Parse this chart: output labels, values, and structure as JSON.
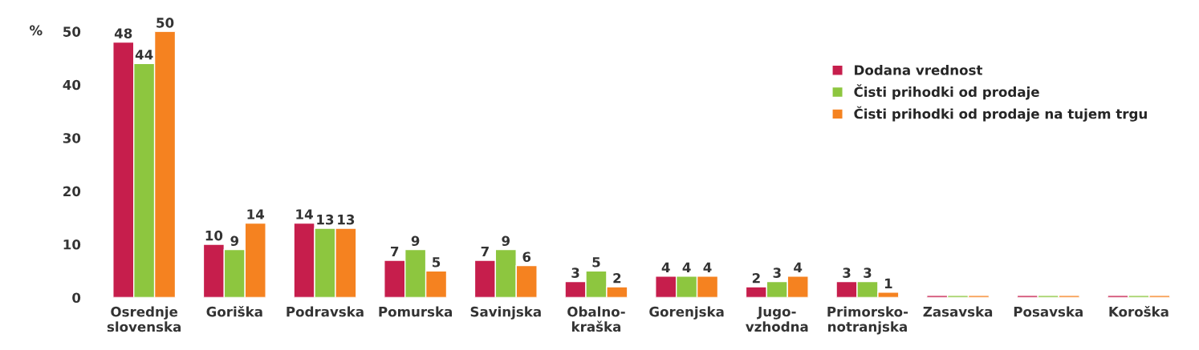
{
  "chart_data": {
    "type": "bar",
    "ylabel": "%",
    "categories": [
      "Osrednje\nslovenska",
      "Goriška",
      "Podravska",
      "Pomurska",
      "Savinjska",
      "Obalno-\nkraška",
      "Gorenjska",
      "Jugo-\nvzhodna",
      "Primorsko-\nnotranjska",
      "Zasavska",
      "Posavska",
      "Koroška"
    ],
    "series": [
      {
        "name": "Dodana vrednost",
        "color": "#c61e4c",
        "values": [
          48,
          10,
          14,
          7,
          7,
          3,
          4,
          2,
          3,
          0.4,
          0.4,
          0.4
        ],
        "value_labels": [
          "48",
          "10",
          "14",
          "7",
          "7",
          "3",
          "4",
          "2",
          "3",
          null,
          null,
          null
        ]
      },
      {
        "name": "Čisti prihodki od prodaje",
        "color": "#8dc63f",
        "values": [
          44,
          9,
          13,
          9,
          9,
          5,
          4,
          3,
          3,
          0.4,
          0.4,
          0.4
        ],
        "value_labels": [
          "44",
          "9",
          "13",
          "9",
          "9",
          "5",
          "4",
          "3",
          "3",
          null,
          null,
          null
        ]
      },
      {
        "name": "Čisti prihodki od prodaje na tujem trgu",
        "color": "#f58220",
        "values": [
          50,
          14,
          13,
          5,
          6,
          2,
          4,
          4,
          1,
          0.4,
          0.4,
          0.4
        ],
        "value_labels": [
          "50",
          "14",
          "13",
          "5",
          "6",
          "2",
          "4",
          "4",
          "1",
          null,
          null,
          null
        ]
      }
    ],
    "ylim": [
      0,
      50
    ],
    "yticks": [
      0,
      10,
      20,
      30,
      40,
      50
    ],
    "grid": false,
    "legend": "top right"
  }
}
